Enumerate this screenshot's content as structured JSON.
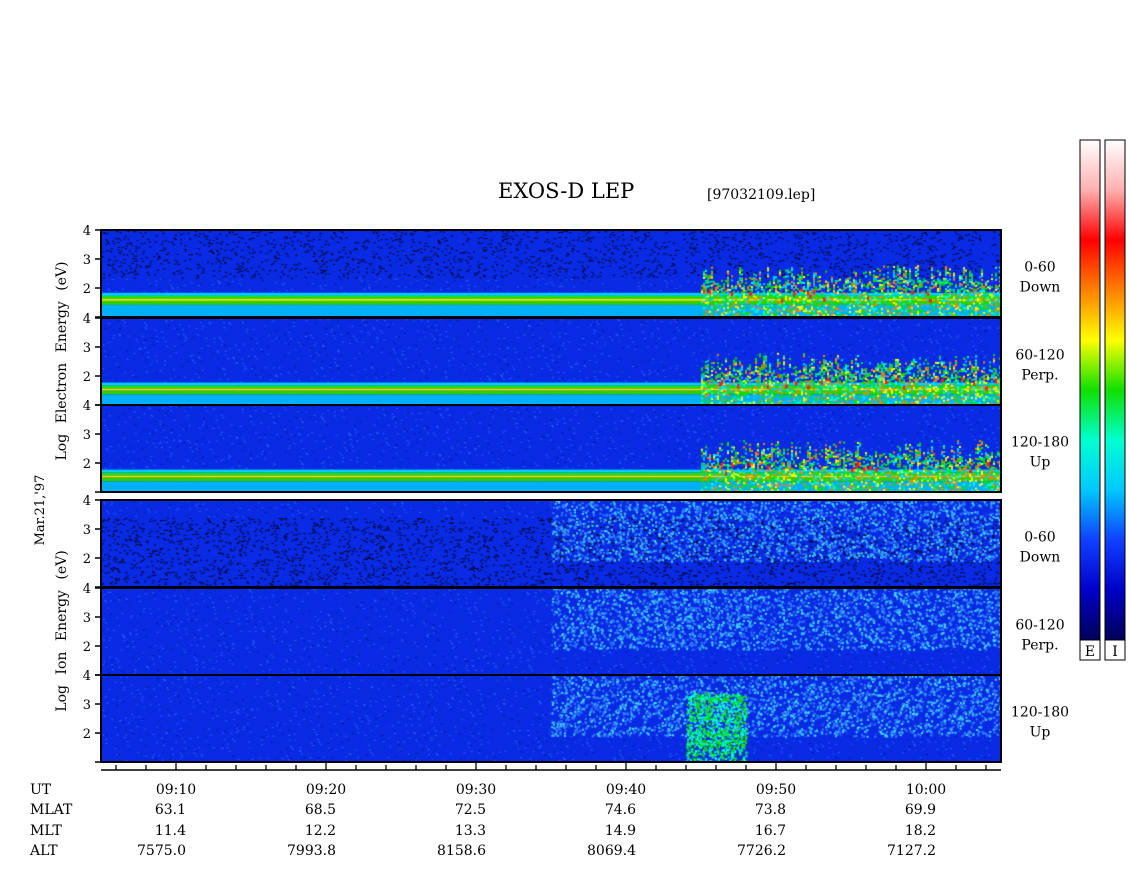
{
  "title": "EXOS-D LEP",
  "file_label": "[97032109.lep]",
  "date_label": "Mar.21,'97",
  "groups": [
    {
      "ylabel": [
        "Log",
        "Electron",
        "Energy",
        "(eV)"
      ]
    },
    {
      "ylabel": [
        "Log",
        "Ion",
        "Energy",
        "(eV)"
      ]
    }
  ],
  "chart_data": {
    "type": "heatmap",
    "x_unit": "UT minutes",
    "xlim": [
      545,
      605
    ],
    "ylim": [
      1,
      4
    ],
    "yticks": [
      1,
      2,
      3,
      4
    ],
    "ytick_labels_shown": [
      "2",
      "3",
      "4"
    ],
    "panels": [
      {
        "species": "Electron",
        "pitch_range": "0-60",
        "direction": "Down",
        "pitch_label": "0-60",
        "dir_label": "Down"
      },
      {
        "species": "Electron",
        "pitch_range": "60-120",
        "direction": "Perp.",
        "pitch_label": "60-120",
        "dir_label": "Perp."
      },
      {
        "species": "Electron",
        "pitch_range": "120-180",
        "direction": "Up",
        "pitch_label": "120-180",
        "dir_label": "Up"
      },
      {
        "species": "Ion",
        "pitch_range": "0-60",
        "direction": "Down",
        "pitch_label": "0-60",
        "dir_label": "Down"
      },
      {
        "species": "Ion",
        "pitch_range": "60-120",
        "direction": "Perp.",
        "pitch_label": "60-120",
        "dir_label": "Perp."
      },
      {
        "species": "Ion",
        "pitch_range": "120-180",
        "direction": "Up",
        "pitch_label": "120-180",
        "dir_label": "Up"
      }
    ],
    "major_ticks": [
      550,
      560,
      570,
      580,
      590,
      600
    ],
    "ephemeris_rows": [
      "UT",
      "MLAT",
      "MLT",
      "ALT"
    ],
    "ephemeris": [
      {
        "UT": "09:10",
        "MLAT": "63.1",
        "MLT": "11.4",
        "ALT": "7575.0"
      },
      {
        "UT": "09:20",
        "MLAT": "68.5",
        "MLT": "12.2",
        "ALT": "7993.8"
      },
      {
        "UT": "09:30",
        "MLAT": "72.5",
        "MLT": "13.3",
        "ALT": "8158.6"
      },
      {
        "UT": "09:40",
        "MLAT": "74.6",
        "MLT": "14.9",
        "ALT": "8069.4"
      },
      {
        "UT": "09:50",
        "MLAT": "73.8",
        "MLT": "16.7",
        "ALT": "7726.2"
      },
      {
        "UT": "10:00",
        "MLAT": "69.9",
        "MLT": "18.2",
        "ALT": "7127.2"
      }
    ],
    "colorbars": [
      {
        "label": "E"
      },
      {
        "label": "I"
      }
    ],
    "colormap": [
      "#00005a",
      "#0000c8",
      "#1040ff",
      "#00c8ff",
      "#00ffd0",
      "#10e000",
      "#ffff00",
      "#ff8000",
      "#ff0000",
      "#ffb0b0",
      "#ffffff"
    ]
  }
}
